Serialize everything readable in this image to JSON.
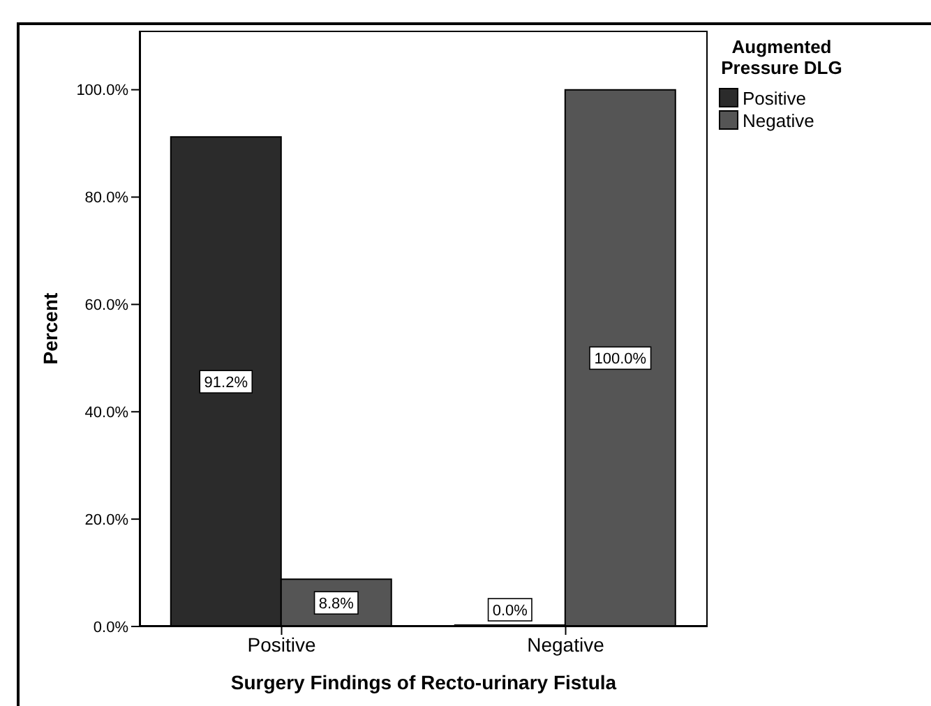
{
  "chart_data": {
    "type": "bar",
    "xlabel": "Surgery Findings of Recto-urinary Fistula",
    "ylabel": "Percent",
    "legend_title": "Augmented Pressure DLG",
    "categories": [
      "Positive",
      "Negative"
    ],
    "series": [
      {
        "name": "Positive",
        "color": "#2b2b2b",
        "values": [
          91.2,
          0.0
        ],
        "value_labels": [
          "91.2%",
          "0.0%"
        ]
      },
      {
        "name": "Negative",
        "color": "#555555",
        "values": [
          8.8,
          100.0
        ],
        "value_labels": [
          "8.8%",
          "100.0%"
        ]
      }
    ],
    "ylim": [
      0,
      111
    ],
    "yticks": [
      {
        "value": 0,
        "label": "0.0%"
      },
      {
        "value": 20,
        "label": "20.0%"
      },
      {
        "value": 40,
        "label": "40.0%"
      },
      {
        "value": 60,
        "label": "60.0%"
      },
      {
        "value": 80,
        "label": "80.0%"
      },
      {
        "value": 100,
        "label": "100.0%"
      }
    ],
    "grid": false,
    "legend": "top right"
  }
}
